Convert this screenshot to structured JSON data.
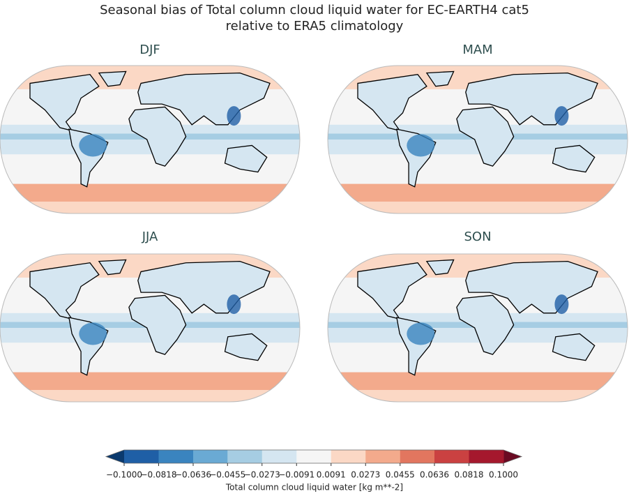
{
  "title": "Seasonal bias of Total column cloud liquid water for EC-EARTH4 cat5",
  "subtitle": "relative to ERA5 climatology",
  "panels": [
    {
      "title": "DJF"
    },
    {
      "title": "MAM"
    },
    {
      "title": "JJA"
    },
    {
      "title": "SON"
    }
  ],
  "colorbar": {
    "label": "Total column cloud liquid water [kg m**-2]",
    "lim": [
      {
        "value": -0.1,
        "label": "−0.1000"
      },
      {
        "value": 0.1,
        "label": "0.1000"
      }
    ],
    "ticks": [
      {
        "value": -0.1,
        "label": "−0.1000"
      },
      {
        "value": -0.0818,
        "label": "−0.0818"
      },
      {
        "value": -0.0636,
        "label": "−0.0636"
      },
      {
        "value": -0.0455,
        "label": "−0.0455"
      },
      {
        "value": -0.0273,
        "label": "−0.0273"
      },
      {
        "value": -0.0091,
        "label": "−0.0091"
      },
      0.0091,
      0.0273,
      0.0455,
      0.0636,
      0.0818,
      {
        "value": 0.1,
        "label": "0.1000"
      }
    ],
    "colors": [
      "#1f5fa6",
      "#3a84bf",
      "#6aaad4",
      "#a6cde3",
      "#d5e6f1",
      "#f5f5f5",
      "#fbd8c5",
      "#f3aa8c",
      "#e2765f",
      "#ca4141",
      "#a5182d"
    ],
    "under_color": "#0b3a6e",
    "over_color": "#6a0a22"
  }
}
